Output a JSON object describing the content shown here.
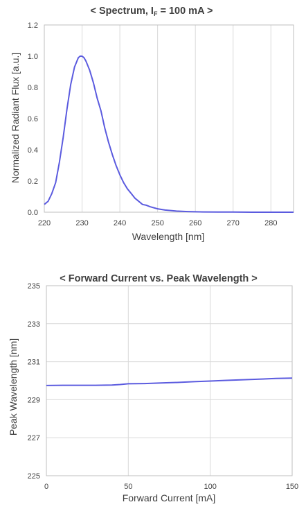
{
  "chart_data": [
    {
      "type": "line",
      "title_prefix": "< Spectrum, I",
      "title_subscript": "F",
      "title_suffix": " = 100 mA >",
      "xlabel": "Wavelength [nm]",
      "ylabel": "Normalized Radiant Flux [a.u.]",
      "xlim": [
        220,
        286
      ],
      "ylim": [
        0,
        1.2
      ],
      "xticks": [
        220,
        230,
        240,
        250,
        260,
        270,
        280
      ],
      "xtick_labels": [
        "220",
        "230",
        "240",
        "250",
        "260",
        "270",
        "280"
      ],
      "yticks": [
        0,
        0.2,
        0.4,
        0.6,
        0.8,
        1.0,
        1.2
      ],
      "ytick_labels": [
        "0.0",
        "0.2",
        "0.4",
        "0.6",
        "0.8",
        "1.0",
        "1.2"
      ],
      "grid": "vertical",
      "color": "#5b5bdf",
      "x": [
        220,
        221,
        222,
        223,
        224,
        225,
        226,
        227,
        228,
        229,
        229.5,
        230,
        230.5,
        231,
        232,
        233,
        234,
        235,
        236,
        237,
        238,
        239,
        240,
        241,
        242,
        243,
        244,
        245,
        246,
        247,
        248,
        250,
        252,
        255,
        258,
        262,
        266,
        270,
        275,
        280,
        286
      ],
      "y": [
        0.05,
        0.07,
        0.12,
        0.19,
        0.32,
        0.48,
        0.66,
        0.82,
        0.93,
        0.99,
        1.0,
        1.0,
        0.99,
        0.97,
        0.91,
        0.83,
        0.73,
        0.65,
        0.54,
        0.45,
        0.37,
        0.3,
        0.24,
        0.19,
        0.15,
        0.12,
        0.09,
        0.07,
        0.05,
        0.045,
        0.035,
        0.022,
        0.014,
        0.007,
        0.004,
        0.002,
        0.001,
        0.001,
        0.0,
        0.0,
        0.0
      ]
    },
    {
      "type": "line",
      "title": "< Forward Current vs. Peak Wavelength >",
      "xlabel": "Forward Current [mA]",
      "ylabel": "Peak Wavelength [nm]",
      "xlim": [
        0,
        150
      ],
      "ylim": [
        225,
        235
      ],
      "xticks": [
        0,
        50,
        100,
        150
      ],
      "xtick_labels": [
        "0",
        "50",
        "100",
        "150"
      ],
      "yticks": [
        225,
        227,
        229,
        231,
        233,
        235
      ],
      "ytick_labels": [
        "225",
        "227",
        "229",
        "231",
        "233",
        "235"
      ],
      "grid": "both",
      "color": "#5b5bdf",
      "x": [
        0,
        10,
        20,
        30,
        40,
        45,
        50,
        60,
        70,
        80,
        90,
        100,
        110,
        120,
        130,
        140,
        150
      ],
      "y": [
        229.75,
        229.76,
        229.76,
        229.76,
        229.77,
        229.8,
        229.84,
        229.85,
        229.88,
        229.91,
        229.95,
        229.98,
        230.02,
        230.05,
        230.08,
        230.12,
        230.14
      ]
    }
  ]
}
